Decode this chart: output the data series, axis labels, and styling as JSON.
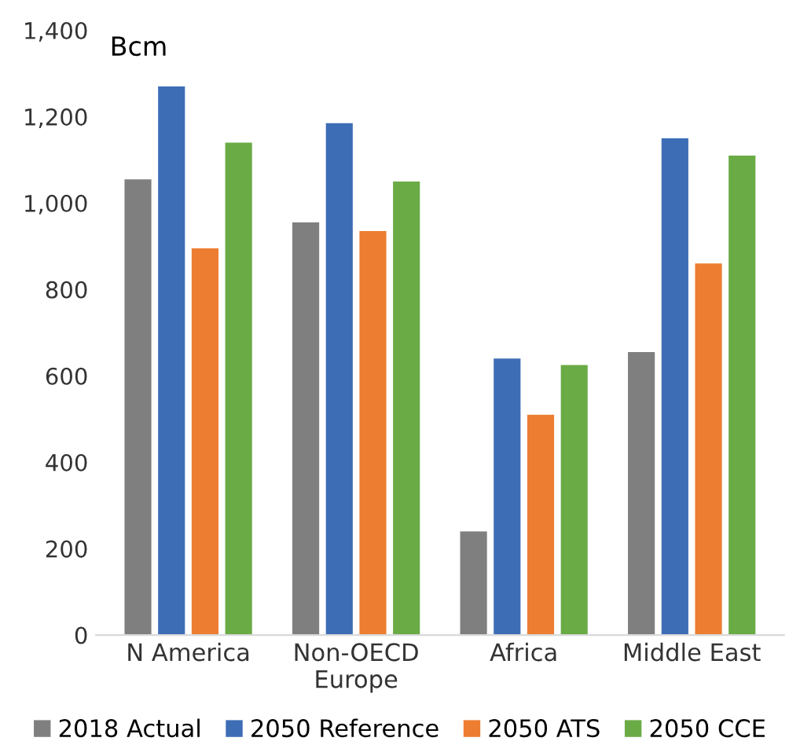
{
  "chart_data": {
    "type": "bar",
    "ylabel": "Bcm",
    "categories": [
      "N America",
      "Non-OECD\nEurope",
      "Africa",
      "Middle East"
    ],
    "series": [
      {
        "name": "2018 Actual",
        "color": "#7f7f7f",
        "values": [
          1055,
          955,
          240,
          655
        ]
      },
      {
        "name": "2050 Reference",
        "color": "#3d6db5",
        "values": [
          1270,
          1185,
          640,
          1150
        ]
      },
      {
        "name": "2050 ATS",
        "color": "#ed7d31",
        "values": [
          895,
          935,
          510,
          860
        ]
      },
      {
        "name": "2050 CCE",
        "color": "#6aab46",
        "values": [
          1140,
          1050,
          625,
          1110
        ]
      }
    ],
    "ylim": [
      0,
      1400
    ],
    "yticks": [
      {
        "value": 0,
        "label": "0"
      },
      {
        "value": 200,
        "label": "200"
      },
      {
        "value": 400,
        "label": "400"
      },
      {
        "value": 600,
        "label": "600"
      },
      {
        "value": 800,
        "label": "800"
      },
      {
        "value": 1000,
        "label": "1,000"
      },
      {
        "value": 1200,
        "label": "1,200"
      },
      {
        "value": 1400,
        "label": "1,400"
      }
    ],
    "grid": false,
    "legend": "bottom"
  }
}
